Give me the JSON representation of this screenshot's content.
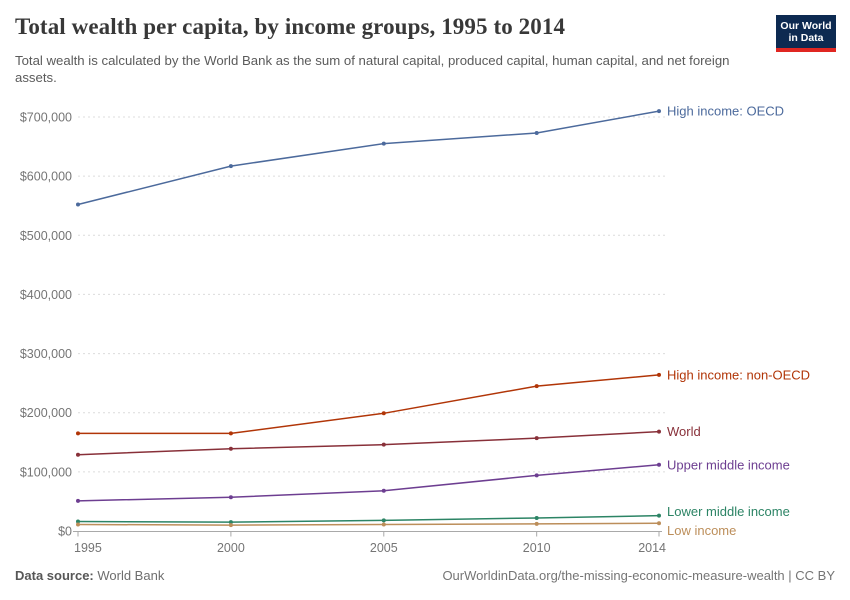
{
  "header": {
    "title": "Total wealth per capita, by income groups, 1995 to 2014",
    "subtitle": "Total wealth is calculated by the World Bank as the sum of natural capital, produced capital, human capital, and net foreign assets.",
    "logo": {
      "line1": "Our World",
      "line2": "in Data",
      "bg_color": "#0d2a51",
      "accent_color": "#e02621"
    }
  },
  "footer": {
    "datasource_label": "Data source:",
    "datasource_value": " World Bank",
    "link_text": "OurWorldinData.org/the-missing-economic-measure-wealth | CC BY"
  },
  "chart_data": {
    "type": "line",
    "title": "Total wealth per capita, by income groups, 1995 to 2014",
    "x": [
      1995,
      2000,
      2005,
      2010,
      2014
    ],
    "x_tick_labels": [
      "1995",
      "2000",
      "2005",
      "2010",
      "2014"
    ],
    "xlabel": "",
    "ylabel": "",
    "ylim": [
      0,
      700000
    ],
    "y_ticks": [
      0,
      100000,
      200000,
      300000,
      400000,
      500000,
      600000,
      700000
    ],
    "y_tick_labels": [
      "$0",
      "$100,000",
      "$200,000",
      "$300,000",
      "$400,000",
      "$500,000",
      "$600,000",
      "$700,000"
    ],
    "grid": "horizontal-dashed",
    "legend_position": "labels-at-line-ends",
    "grid_color": "#dcdcdc",
    "axis_color": "#a9a9a9",
    "tick_label_color": "#757575",
    "series": [
      {
        "id": "high-income-oecd",
        "name": "High income: OECD",
        "color": "#4C6A9C",
        "values": [
          552000,
          617000,
          655000,
          673000,
          710000
        ],
        "label_dy": 0
      },
      {
        "id": "high-income-non-oecd",
        "name": "High income: non-OECD",
        "color": "#B13507",
        "values": [
          165000,
          165000,
          199000,
          245000,
          264000
        ],
        "label_dy": 0
      },
      {
        "id": "world",
        "name": "World",
        "color": "#883039",
        "values": [
          129000,
          139000,
          146000,
          157000,
          168000
        ],
        "label_dy": 0
      },
      {
        "id": "upper-middle-income",
        "name": "Upper middle income",
        "color": "#6D3E91",
        "values": [
          51000,
          57000,
          68000,
          94000,
          112000
        ],
        "label_dy": 0
      },
      {
        "id": "lower-middle-income",
        "name": "Lower middle income",
        "color": "#2C8465",
        "values": [
          16000,
          15000,
          18000,
          22000,
          26000
        ],
        "label_dy": -4
      },
      {
        "id": "low-income",
        "name": "Low income",
        "color": "#BC8E5A",
        "values": [
          11000,
          10000,
          11000,
          12000,
          13000
        ],
        "label_dy": 7
      }
    ]
  }
}
